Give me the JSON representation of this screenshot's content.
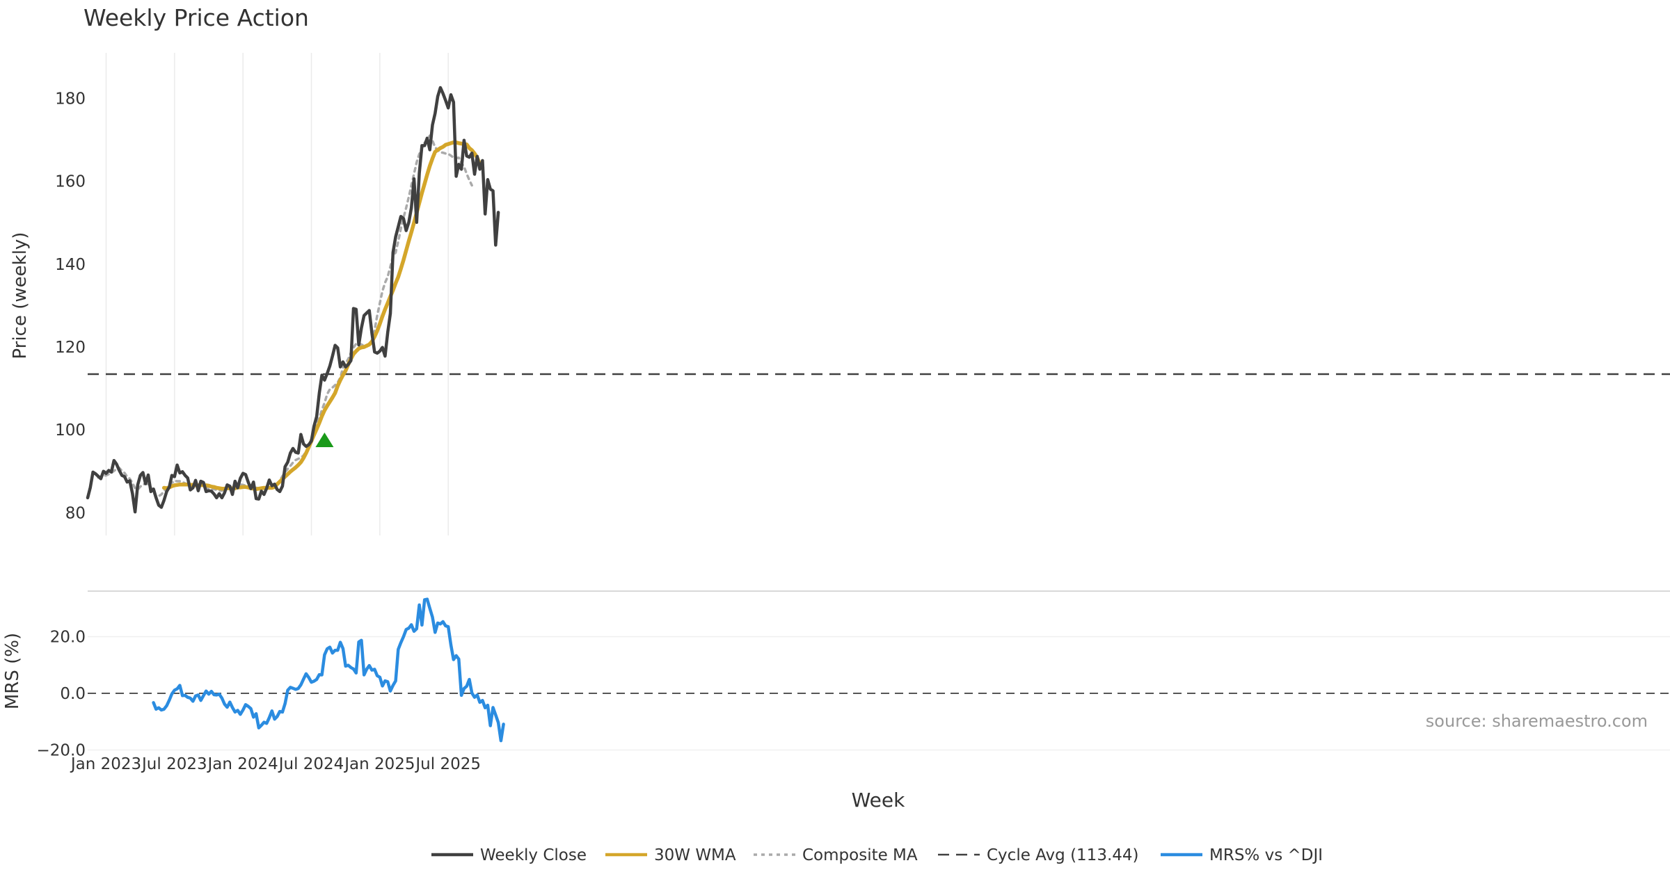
{
  "chart_data": [
    {
      "type": "line",
      "panel": "price",
      "title": "Weekly Price Action",
      "ylabel": "Price (weekly)",
      "ylim": [
        74,
        191
      ],
      "yticks": [
        80,
        100,
        120,
        140,
        160,
        180
      ],
      "ytick_labels": [
        "80",
        "100",
        "120",
        "140",
        "160",
        "180"
      ],
      "grid": "vertical",
      "series": [
        {
          "name": "Weekly Close",
          "color": "#404040",
          "style": "solid",
          "start_week": 0,
          "values": [
            83.6,
            86.1,
            89.8,
            89.4,
            88.8,
            88.2,
            90.0,
            89.5,
            90.2,
            89.8,
            92.6,
            91.7,
            90.2,
            89.0,
            88.7,
            87.4,
            87.7,
            84.7,
            80.2,
            86.7,
            89.0,
            89.7,
            87.0,
            89.1,
            85.1,
            85.7,
            83.6,
            81.8,
            81.3,
            83.0,
            85.1,
            86.2,
            89.0,
            88.7,
            91.5,
            89.6,
            89.9,
            89.0,
            88.4,
            85.5,
            86.0,
            87.8,
            85.3,
            87.6,
            87.3,
            85.1,
            85.3,
            85.2,
            84.5,
            83.6,
            84.6,
            83.6,
            84.8,
            86.7,
            86.4,
            84.4,
            87.6,
            86.0,
            88.3,
            89.5,
            89.2,
            87.4,
            85.8,
            87.4,
            83.4,
            83.3,
            85.2,
            84.4,
            85.9,
            87.9,
            86.5,
            86.9,
            85.6,
            85.1,
            86.4,
            91.1,
            92.2,
            94.4,
            95.5,
            94.6,
            94.4,
            98.9,
            96.6,
            96.0,
            96.4,
            97.3,
            100.9,
            103.2,
            108.9,
            113.2,
            112.0,
            113.6,
            115.4,
            117.8,
            120.4,
            119.8,
            115.2,
            116.4,
            115.2,
            115.8,
            116.7,
            129.3,
            129.1,
            120.5,
            124.6,
            127.6,
            128.2,
            128.8,
            123.3,
            118.8,
            118.5,
            119.0,
            119.9,
            117.8,
            123.5,
            128.1,
            142.8,
            146.6,
            149.0,
            151.5,
            151.0,
            148.1,
            150.1,
            153.6,
            160.6,
            150.1,
            162.0,
            168.6,
            168.6,
            170.4,
            167.6,
            173.6,
            176.4,
            180.5,
            182.6,
            181.2,
            179.5,
            177.7,
            180.9,
            179.1,
            161.2,
            164.1,
            162.9,
            169.9,
            166.1,
            165.8,
            166.8,
            161.7,
            166.0,
            162.9,
            165.0,
            152.1,
            160.4,
            158.1,
            157.7,
            144.6,
            152.5
          ]
        },
        {
          "name": "30W WMA",
          "color": "#d4a62a",
          "style": "solid",
          "start_week": 29,
          "values": [
            86.0,
            85.9,
            86.1,
            86.4,
            86.6,
            86.7,
            86.8,
            86.8,
            86.8,
            86.8,
            86.7,
            86.7,
            86.6,
            86.6,
            86.7,
            86.6,
            86.6,
            86.5,
            86.3,
            86.2,
            86.0,
            85.9,
            85.8,
            85.8,
            85.9,
            85.9,
            85.9,
            85.9,
            86.1,
            86.1,
            86.2,
            86.2,
            86.1,
            85.9,
            85.8,
            85.7,
            85.8,
            85.9,
            86.0,
            86.0,
            86.0,
            86.0,
            86.2,
            86.9,
            87.5,
            88.1,
            88.7,
            89.3,
            89.9,
            90.4,
            90.9,
            91.5,
            92.2,
            93.2,
            94.4,
            95.8,
            97.3,
            98.8,
            100.2,
            101.7,
            103.3,
            104.7,
            105.8,
            106.8,
            107.8,
            108.9,
            110.6,
            112.0,
            113.2,
            114.3,
            115.8,
            117.1,
            118.3,
            119.0,
            119.6,
            119.9,
            120.0,
            120.3,
            120.6,
            121.3,
            122.5,
            123.9,
            125.6,
            127.4,
            129.1,
            130.6,
            132.2,
            133.7,
            135.4,
            136.9,
            138.9,
            141.0,
            143.3,
            145.6,
            147.7,
            150.0,
            152.4,
            154.8,
            157.2,
            159.4,
            161.6,
            163.7,
            165.5,
            167.1,
            167.6,
            168.0,
            168.3,
            168.8,
            169.0,
            169.2,
            169.4,
            169.4,
            169.2,
            169.1,
            169.0,
            168.9,
            168.0,
            167.5,
            166.7,
            165.7,
            164.1,
            163.3
          ]
        },
        {
          "name": "Composite MA",
          "color": "#aaaaaa",
          "style": "dotted",
          "start_week": 4,
          "values": [
            88.5,
            88.5,
            88.9,
            89.0,
            89.3,
            89.6,
            90.1,
            90.5,
            90.8,
            90.1,
            89.6,
            88.7,
            88.2,
            87.2,
            85.9,
            85.6,
            86.3,
            86.8,
            87.0,
            86.9,
            86.1,
            85.0,
            83.8,
            84.0,
            84.4,
            85.2,
            85.9,
            86.4,
            87.2,
            87.7,
            87.6,
            87.6,
            87.4,
            87.1,
            86.7,
            86.5,
            86.6,
            86.8,
            86.7,
            86.6,
            86.2,
            85.9,
            85.7,
            85.6,
            85.7,
            85.5,
            85.4,
            85.3,
            85.7,
            85.9,
            86.1,
            86.4,
            86.6,
            86.9,
            86.8,
            86.7,
            86.5,
            86.4,
            86.4,
            86.1,
            86.0,
            85.9,
            85.7,
            85.8,
            85.9,
            85.8,
            85.9,
            86.2,
            86.6,
            87.8,
            88.8,
            89.8,
            90.6,
            91.3,
            92.1,
            92.7,
            93.0,
            93.3,
            93.8,
            94.8,
            96.0,
            97.8,
            99.5,
            101.2,
            102.9,
            104.8,
            106.5,
            108.6,
            109.8,
            110.2,
            110.8,
            111.4,
            112.6,
            115.0,
            116.1,
            117.1,
            118.6,
            119.8,
            120.8,
            120.9,
            120.6,
            120.3,
            120.1,
            120.4,
            121.2,
            124.0,
            127.6,
            130.6,
            133.5,
            135.5,
            137.0,
            139.4,
            141.9,
            142.8,
            145.5,
            148.6,
            151.2,
            153.6,
            156.2,
            159.0,
            161.8,
            164.6,
            166.6,
            168.0,
            169.3,
            170.1,
            171.0,
            169.8,
            168.2,
            167.5,
            167.0,
            166.9,
            166.7,
            166.6,
            166.2,
            165.7,
            165.6,
            165.7,
            164.4,
            163.5,
            161.8,
            160.3,
            159.0
          ]
        },
        {
          "name": "Cycle Avg (113.44)",
          "color": "#404040",
          "style": "dashed",
          "constant": 113.44
        }
      ],
      "annotations": [
        {
          "kind": "buy-signal-triangle",
          "week": 90,
          "y": 97.5,
          "color": "#1a9a1a"
        }
      ]
    },
    {
      "type": "line",
      "panel": "mrs",
      "ylabel": "MRS (%)",
      "ylim": [
        -20,
        32
      ],
      "yticks": [
        -20.0,
        0.0,
        20.0
      ],
      "ytick_labels": [
        "−20.0",
        "0.0",
        "20.0"
      ],
      "xlabel": "Week",
      "x_tick_labels": [
        {
          "label": "Jan 2023",
          "week": 7
        },
        {
          "label": "Jul 2023",
          "week": 33
        },
        {
          "label": "Jan 2024",
          "week": 59
        },
        {
          "label": "Jul 2024",
          "week": 85
        },
        {
          "label": "Jan 2025",
          "week": 111
        },
        {
          "label": "Jul 2025",
          "week": 137
        }
      ],
      "zero_line": true,
      "series": [
        {
          "name": "MRS% vs ^DJI",
          "color": "#2b8ce0",
          "style": "solid",
          "start_week": 25,
          "values": [
            -3.3,
            -5.6,
            -5.1,
            -5.9,
            -5.6,
            -4.4,
            -2.4,
            -0.2,
            1.1,
            1.6,
            2.8,
            -0.8,
            -0.7,
            -1.4,
            -1.7,
            -2.8,
            -0.9,
            -0.6,
            -2.5,
            -0.8,
            0.8,
            -0.3,
            0.7,
            -0.5,
            -0.6,
            -0.3,
            -1.7,
            -3.8,
            -4.9,
            -3.1,
            -5.0,
            -6.6,
            -6.0,
            -7.4,
            -5.9,
            -4.0,
            -4.6,
            -5.4,
            -8.4,
            -7.2,
            -12.2,
            -11.3,
            -10.2,
            -10.6,
            -8.6,
            -6.2,
            -9.1,
            -8.2,
            -6.4,
            -6.6,
            -3.6,
            1.1,
            2.1,
            1.8,
            1.4,
            1.7,
            3.0,
            5.0,
            6.9,
            5.6,
            3.9,
            4.3,
            4.9,
            6.6,
            6.5,
            13.6,
            15.7,
            16.3,
            14.2,
            15.2,
            15.2,
            18.0,
            15.8,
            9.6,
            9.9,
            9.1,
            8.6,
            7.2,
            18.1,
            18.7,
            6.5,
            8.5,
            9.8,
            8.2,
            8.5,
            6.2,
            5.7,
            2.6,
            4.4,
            4.1,
            0.8,
            2.8,
            4.4,
            15.5,
            17.9,
            20.0,
            22.5,
            23.0,
            24.2,
            21.9,
            22.8,
            31.2,
            24.1,
            33.0,
            33.2,
            30.0,
            26.9,
            21.5,
            24.8,
            24.5,
            25.3,
            23.8,
            23.5,
            17.1,
            11.9,
            13.3,
            12.1,
            -0.7,
            1.7,
            2.5,
            4.9,
            0.1,
            -1.4,
            -0.6,
            -3.2,
            -2.5,
            -5.1,
            -4.2,
            -11.4,
            -5.0,
            -7.6,
            -10.3,
            -16.7,
            -10.9
          ]
        }
      ]
    }
  ],
  "legend": {
    "placement": "bottom-center",
    "items": [
      {
        "label": "Weekly Close",
        "color": "#404040",
        "style": "solid"
      },
      {
        "label": "30W WMA",
        "color": "#d4a62a",
        "style": "solid"
      },
      {
        "label": "Composite MA",
        "color": "#aaaaaa",
        "style": "dotted"
      },
      {
        "label": "Cycle Avg (113.44)",
        "color": "#404040",
        "style": "dashed"
      },
      {
        "label": "MRS% vs ^DJI",
        "color": "#2b8ce0",
        "style": "solid"
      }
    ]
  },
  "source_note": "source: sharemaestro.com"
}
